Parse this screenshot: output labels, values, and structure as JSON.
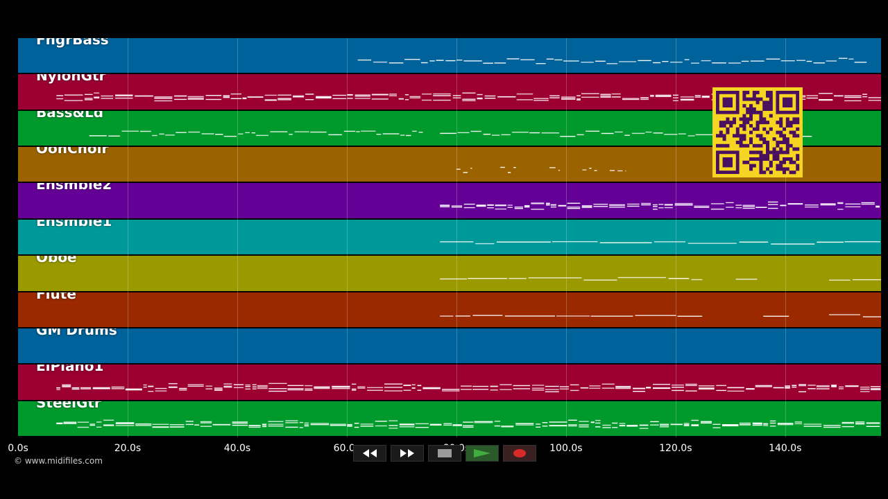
{
  "tracks": [
    {
      "name": "FngrBass",
      "color": "#00629a",
      "notes": [
        [
          62,
          155,
          "mid"
        ]
      ],
      "density": 0.55
    },
    {
      "name": "NylonGtr",
      "color": "#9c0033",
      "notes": [
        [
          7,
          158,
          "dense"
        ]
      ],
      "density": 1.0
    },
    {
      "name": "Bass&Ld",
      "color": "#009a2c",
      "notes": [
        [
          13,
          74,
          "mid"
        ],
        [
          77,
          145,
          "mid"
        ]
      ],
      "density": 0.7
    },
    {
      "name": "OohChoir",
      "color": "#9a6300",
      "notes": [
        [
          80,
          83,
          "short"
        ],
        [
          88,
          91,
          "short"
        ],
        [
          97,
          99,
          "short"
        ],
        [
          103,
          106,
          "short"
        ],
        [
          108,
          111,
          "short"
        ]
      ],
      "density": 0.4
    },
    {
      "name": "Ensmble2",
      "color": "#640096",
      "notes": [
        [
          77,
          158,
          "dense"
        ]
      ],
      "density": 0.9
    },
    {
      "name": "Ensmble1",
      "color": "#00999a",
      "notes": [
        [
          77,
          158,
          "line"
        ]
      ],
      "density": 0.6
    },
    {
      "name": "Oboe",
      "color": "#9a9a00",
      "notes": [
        [
          77,
          125,
          "line"
        ],
        [
          131,
          135,
          "line"
        ],
        [
          148,
          158,
          "line"
        ]
      ],
      "density": 0.5
    },
    {
      "name": "Flute",
      "color": "#9a2900",
      "notes": [
        [
          77,
          125,
          "line"
        ],
        [
          136,
          141,
          "line"
        ],
        [
          148,
          158,
          "line"
        ]
      ],
      "density": 0.5
    },
    {
      "name": "GM Drums",
      "color": "#00629a",
      "notes": [],
      "density": 0
    },
    {
      "name": "ElPiano1",
      "color": "#9c0033",
      "notes": [
        [
          7,
          158,
          "dense"
        ]
      ],
      "density": 0.9
    },
    {
      "name": "SteelGtr",
      "color": "#009a2c",
      "notes": [
        [
          7,
          158,
          "dense"
        ]
      ],
      "density": 1.0
    }
  ],
  "timeline": {
    "max_seconds": 157.5,
    "ticks": [
      "0.0s",
      "20.0s",
      "40.0s",
      "60.0s",
      "80.0s",
      "100.0s",
      "120.0s",
      "140.0s"
    ],
    "tick_values": [
      0,
      20,
      40,
      60,
      80,
      100,
      120,
      140
    ]
  },
  "credit": "© www.midifiles.com",
  "transport": {
    "rewind_icon": "rewind-icon",
    "forward_icon": "fast-forward-icon",
    "stop_icon": "stop-icon",
    "play_icon": "play-icon",
    "record_icon": "record-icon"
  },
  "colors": {
    "play": "#3fae3f",
    "record": "#d92a2a",
    "stop": "#9a9a9a",
    "qr_bg": "#f5d422",
    "qr_fg": "#4a1060"
  }
}
